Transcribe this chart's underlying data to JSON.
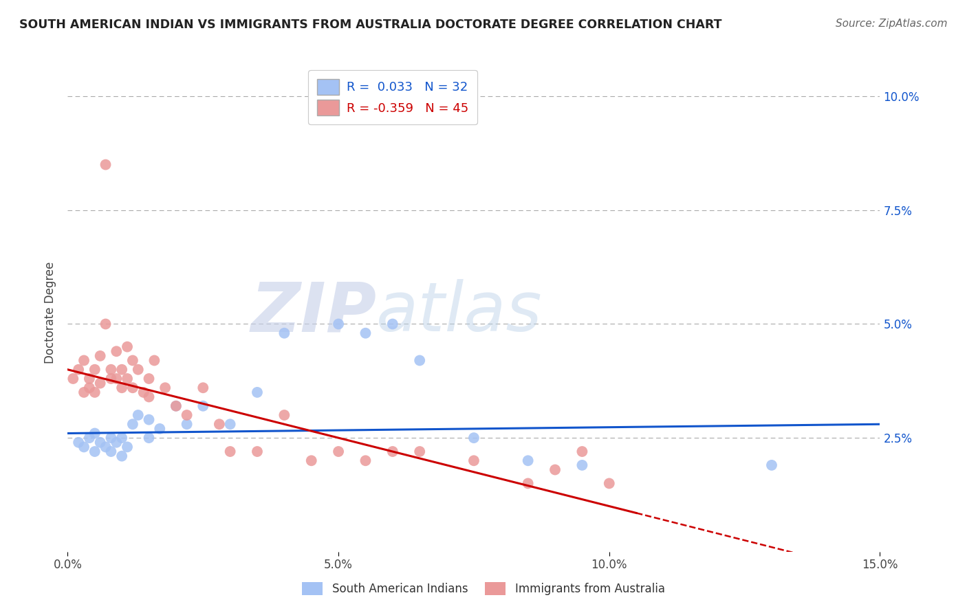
{
  "title": "SOUTH AMERICAN INDIAN VS IMMIGRANTS FROM AUSTRALIA DOCTORATE DEGREE CORRELATION CHART",
  "source": "Source: ZipAtlas.com",
  "ylabel": "Doctorate Degree",
  "xlim": [
    0.0,
    0.15
  ],
  "ylim": [
    0.0,
    0.105
  ],
  "xticks": [
    0.0,
    0.05,
    0.1,
    0.15
  ],
  "xtick_labels": [
    "0.0%",
    "5.0%",
    "10.0%",
    "15.0%"
  ],
  "ytick_labels_right": [
    "2.5%",
    "5.0%",
    "7.5%",
    "10.0%"
  ],
  "ytick_vals_right": [
    0.025,
    0.05,
    0.075,
    0.1
  ],
  "blue_R": "0.033",
  "blue_N": "32",
  "pink_R": "-0.359",
  "pink_N": "45",
  "blue_color": "#a4c2f4",
  "pink_color": "#ea9999",
  "blue_line_color": "#1155cc",
  "pink_line_color": "#cc0000",
  "watermark_zip": "ZIP",
  "watermark_atlas": "atlas",
  "legend_label_blue": "South American Indians",
  "legend_label_pink": "Immigrants from Australia",
  "blue_scatter_x": [
    0.002,
    0.003,
    0.004,
    0.005,
    0.005,
    0.006,
    0.007,
    0.008,
    0.008,
    0.009,
    0.01,
    0.01,
    0.011,
    0.012,
    0.013,
    0.015,
    0.015,
    0.017,
    0.02,
    0.022,
    0.025,
    0.03,
    0.035,
    0.04,
    0.05,
    0.055,
    0.06,
    0.065,
    0.075,
    0.085,
    0.095,
    0.13
  ],
  "blue_scatter_y": [
    0.024,
    0.023,
    0.025,
    0.022,
    0.026,
    0.024,
    0.023,
    0.025,
    0.022,
    0.024,
    0.025,
    0.021,
    0.023,
    0.028,
    0.03,
    0.025,
    0.029,
    0.027,
    0.032,
    0.028,
    0.032,
    0.028,
    0.035,
    0.048,
    0.05,
    0.048,
    0.05,
    0.042,
    0.025,
    0.02,
    0.019,
    0.019
  ],
  "pink_scatter_x": [
    0.001,
    0.002,
    0.003,
    0.003,
    0.004,
    0.004,
    0.005,
    0.005,
    0.006,
    0.006,
    0.007,
    0.007,
    0.008,
    0.008,
    0.009,
    0.009,
    0.01,
    0.01,
    0.011,
    0.011,
    0.012,
    0.012,
    0.013,
    0.014,
    0.015,
    0.015,
    0.016,
    0.018,
    0.02,
    0.022,
    0.025,
    0.028,
    0.03,
    0.035,
    0.04,
    0.045,
    0.05,
    0.055,
    0.06,
    0.065,
    0.075,
    0.085,
    0.09,
    0.095,
    0.1
  ],
  "pink_scatter_y": [
    0.038,
    0.04,
    0.035,
    0.042,
    0.036,
    0.038,
    0.04,
    0.035,
    0.043,
    0.037,
    0.085,
    0.05,
    0.04,
    0.038,
    0.044,
    0.038,
    0.04,
    0.036,
    0.045,
    0.038,
    0.042,
    0.036,
    0.04,
    0.035,
    0.038,
    0.034,
    0.042,
    0.036,
    0.032,
    0.03,
    0.036,
    0.028,
    0.022,
    0.022,
    0.03,
    0.02,
    0.022,
    0.02,
    0.022,
    0.022,
    0.02,
    0.015,
    0.018,
    0.022,
    0.015
  ],
  "background_color": "#ffffff",
  "grid_color": "#aaaaaa"
}
